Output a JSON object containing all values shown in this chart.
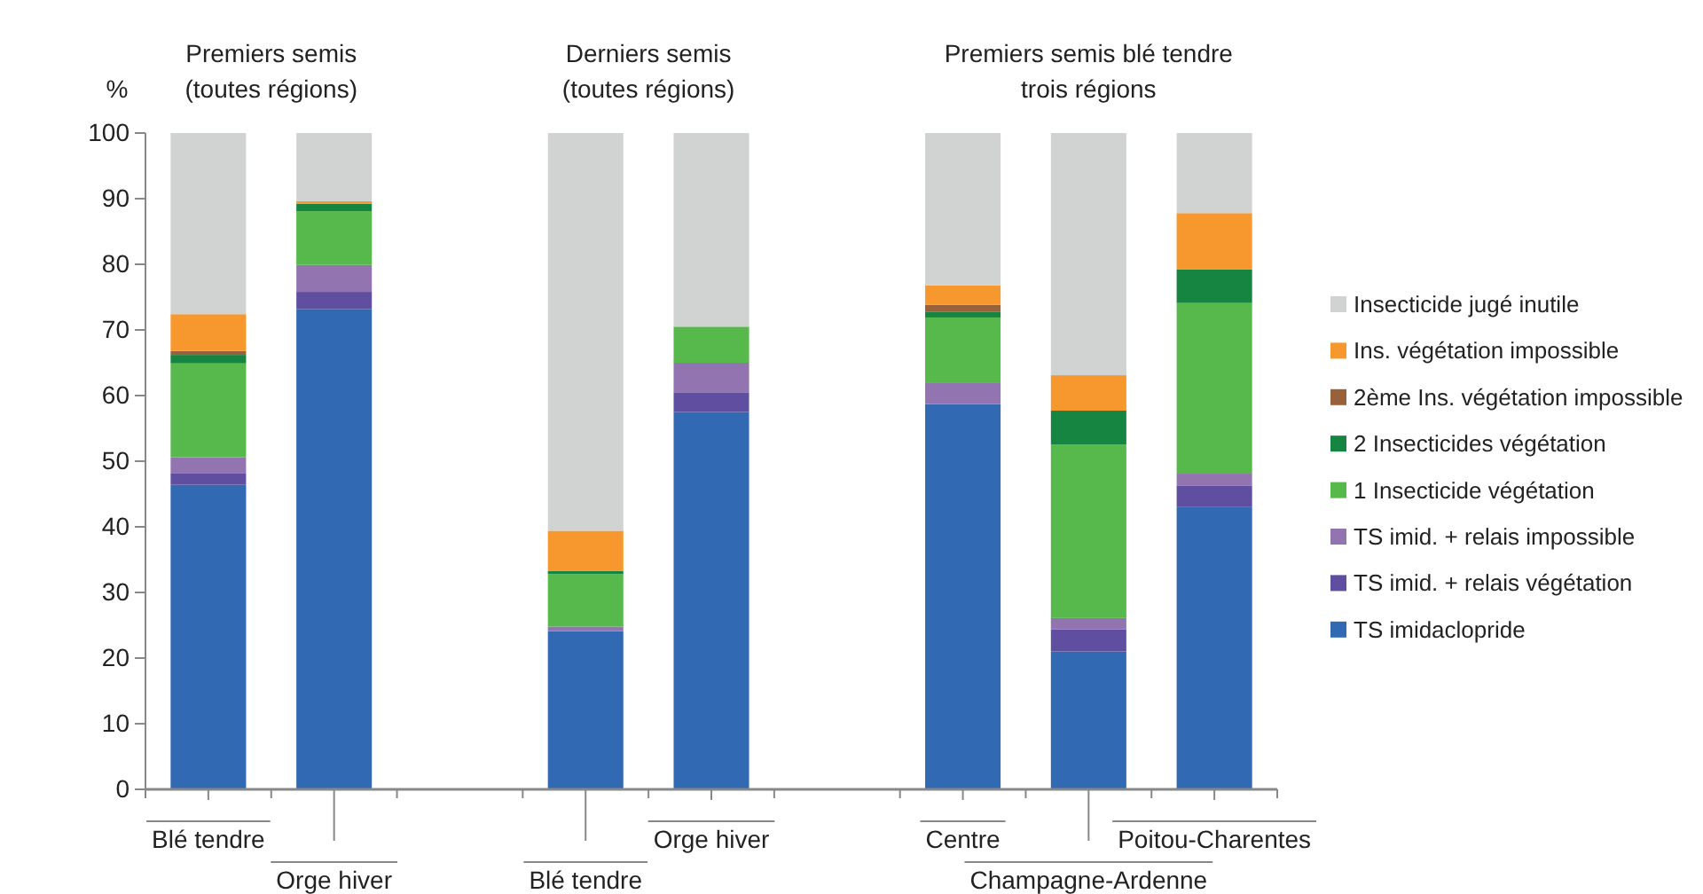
{
  "chart_data": {
    "type": "bar",
    "stacked": true,
    "ylabel": "%",
    "annotations": [
      "Premiers semis\n(toutes régions)",
      "Derniers semis\n(toutes régions)",
      "Premiers semis blé tendre\ntrois régions"
    ],
    "categories": [
      "Blé tendre",
      "Orge hiver",
      null,
      "Blé tendre",
      "Orge hiver",
      null,
      "Centre",
      "Champagne-Ardenne",
      "Poitou-Charentes"
    ],
    "series": [
      {
        "name": "TS imidaclopride",
        "color": "#3169b3",
        "values": [
          46.4,
          73.2,
          null,
          24.1,
          57.5,
          null,
          58.7,
          21.0,
          43.0
        ]
      },
      {
        "name": "TS imid. + relais  végétation",
        "color": "#604fa0",
        "values": [
          1.8,
          2.6,
          null,
          0,
          3.0,
          null,
          0,
          3.4,
          3.3
        ]
      },
      {
        "name": "TS imid. + relais impossible",
        "color": "#9274b0",
        "values": [
          2.4,
          4.1,
          null,
          0.7,
          4.5,
          null,
          3.2,
          1.7,
          1.8
        ]
      },
      {
        "name": "1 Insecticide  végétation",
        "color": "#57b84c",
        "values": [
          14.3,
          8.2,
          null,
          8.0,
          5.5,
          null,
          10.0,
          26.4,
          26.0
        ]
      },
      {
        "name": "2 Insecticides  végétation",
        "color": "#168541",
        "values": [
          1.3,
          1.1,
          null,
          0.5,
          0,
          null,
          0.9,
          5.2,
          5.1
        ]
      },
      {
        "name": "2ème Ins. végétation impossible",
        "color": "#99613a",
        "values": [
          0.6,
          0,
          null,
          0,
          0,
          null,
          1.0,
          0,
          0
        ]
      },
      {
        "name": "Ins. végétation impossible",
        "color": "#f7982f",
        "values": [
          5.6,
          0.4,
          null,
          6.1,
          0,
          null,
          3.0,
          5.4,
          8.6
        ]
      },
      {
        "name": "Insecticide jugé inutile",
        "color": "#d1d2d2",
        "values": [
          27.6,
          10.4,
          null,
          60.6,
          29.5,
          null,
          23.2,
          36.9,
          12.2
        ]
      }
    ],
    "ylim": [
      0,
      100
    ],
    "yticks": [
      0,
      10,
      20,
      30,
      40,
      50,
      60,
      70,
      80,
      90,
      100
    ],
    "grid": false,
    "legend": "right"
  }
}
